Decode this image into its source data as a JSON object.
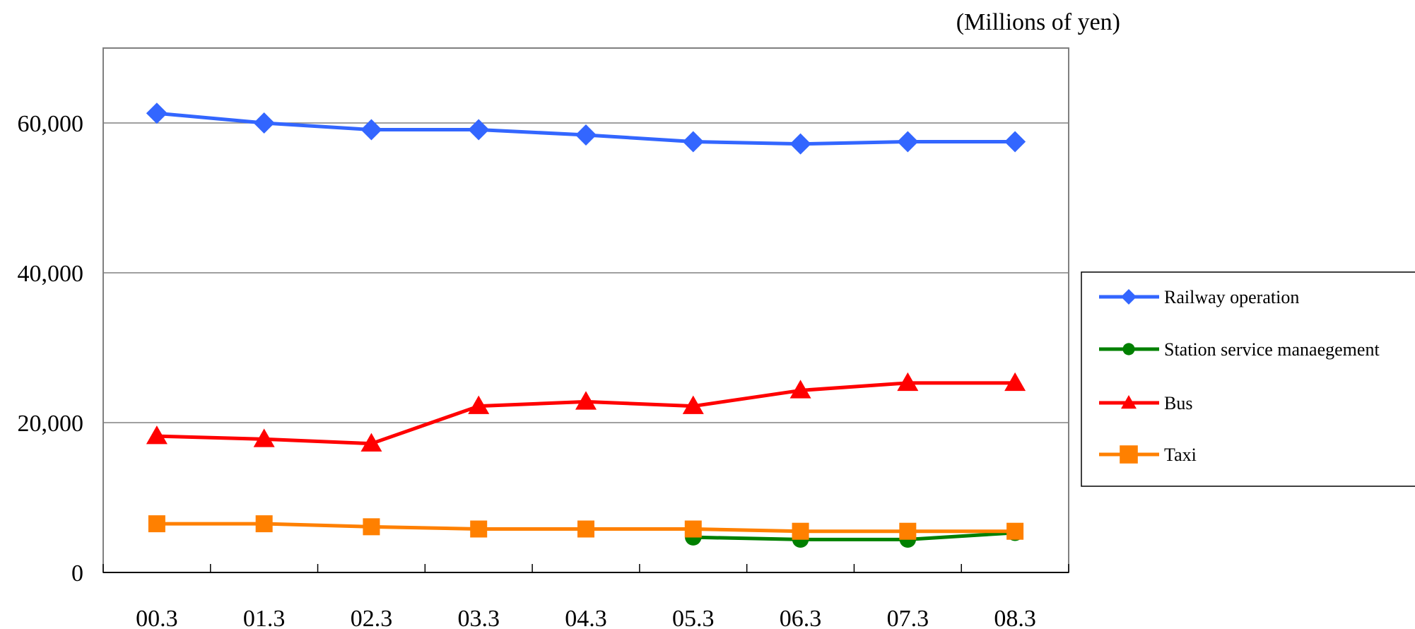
{
  "chart_data": {
    "type": "line",
    "unit_label": "(Millions of yen)",
    "categories": [
      "00.3",
      "01.3",
      "02.3",
      "03.3",
      "04.3",
      "05.3",
      "06.3",
      "07.3",
      "08.3"
    ],
    "ylim": [
      0,
      70000
    ],
    "y_ticks": [
      0,
      20000,
      40000,
      60000
    ],
    "y_tick_labels": [
      "0",
      "20,000",
      "40,000",
      "60,000"
    ],
    "grid": true,
    "legend_position": "right",
    "series": [
      {
        "name": "Railway operation",
        "color": "#3366ff",
        "marker": "diamond",
        "values": [
          61300,
          60000,
          59100,
          59100,
          58400,
          57500,
          57200,
          57500,
          57500
        ]
      },
      {
        "name": "Station service manaegement",
        "color": "#008000",
        "marker": "circle",
        "values": [
          null,
          null,
          null,
          null,
          null,
          4700,
          4400,
          4400,
          5300
        ]
      },
      {
        "name": "Bus",
        "color": "#ff0000",
        "marker": "triangle",
        "values": [
          18200,
          17800,
          17200,
          22200,
          22800,
          22200,
          24300,
          25300,
          25300
        ]
      },
      {
        "name": "Taxi",
        "color": "#ff8000",
        "marker": "square",
        "values": [
          6500,
          6500,
          6100,
          5800,
          5800,
          5800,
          5500,
          5500,
          5500
        ]
      }
    ]
  }
}
